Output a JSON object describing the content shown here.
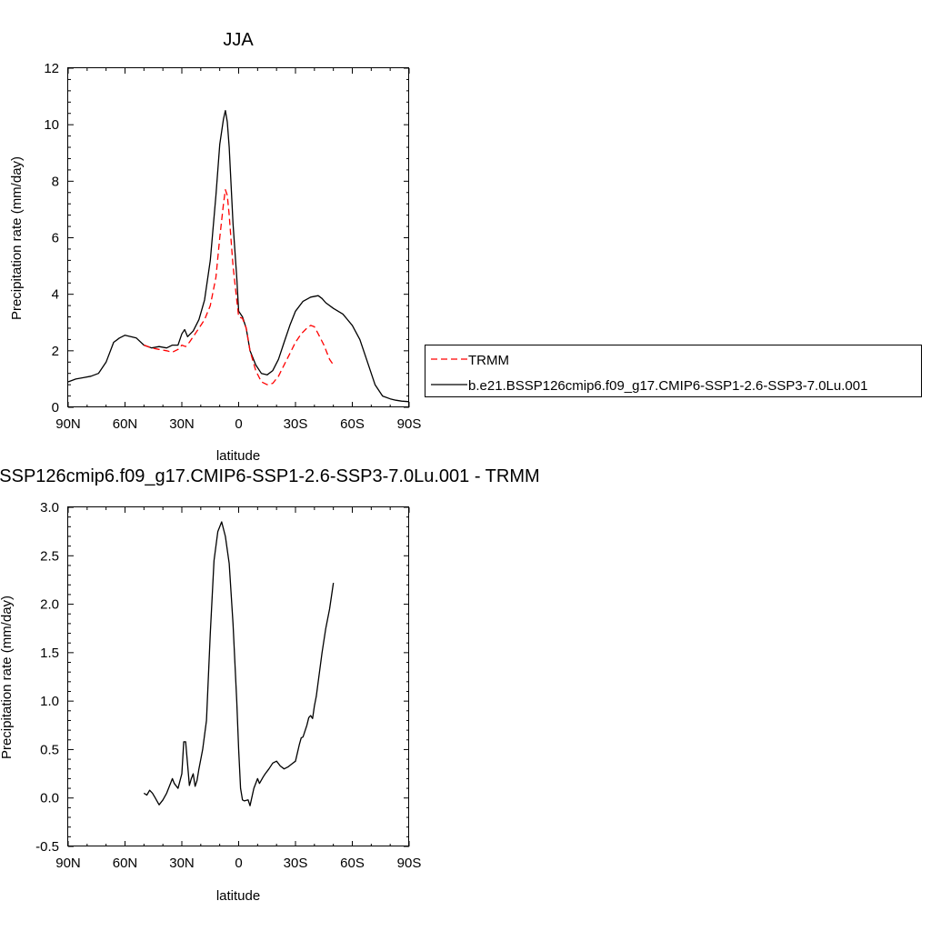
{
  "legend": {
    "entries": [
      {
        "label": "TRMM",
        "color": "#ff0000",
        "style": "dashed"
      },
      {
        "label": "b.e21.BSSP126cmip6.f09_g17.CMIP6-SSP1-2.6-SSP3-7.0Lu.001",
        "color": "#000000",
        "style": "solid"
      }
    ]
  },
  "chart_data": [
    {
      "type": "line",
      "title": "JJA",
      "xlabel": "latitude",
      "ylabel": "Precipitation rate (mm/day)",
      "xlim": [
        90,
        -90
      ],
      "ylim": [
        0,
        12
      ],
      "x_ticks": [
        90,
        60,
        30,
        0,
        -30,
        -60,
        -90
      ],
      "x_tick_labels": [
        "90N",
        "60N",
        "30N",
        "0",
        "30S",
        "60S",
        "90S"
      ],
      "y_ticks": [
        0,
        2,
        4,
        6,
        8,
        10,
        12
      ],
      "y_tick_labels": [
        "0",
        "2",
        "4",
        "6",
        "8",
        "10",
        "12"
      ],
      "series": [
        {
          "name": "b.e21.BSSP126cmip6.f09_g17.CMIP6-SSP1-2.6-SSP3-7.0Lu.001",
          "color": "#000000",
          "style": "solid",
          "x": [
            90,
            86,
            82,
            78,
            74,
            70,
            66,
            63,
            60,
            57,
            54,
            50,
            46,
            42,
            38,
            35,
            32,
            30,
            28.5,
            27,
            24,
            21,
            18,
            15,
            12,
            10,
            8,
            7,
            6,
            5,
            3,
            1,
            0,
            -2,
            -4,
            -6,
            -9,
            -12,
            -15,
            -18,
            -21,
            -24,
            -27,
            -30,
            -34,
            -38,
            -42,
            -44,
            -46,
            -50,
            -55,
            -60,
            -64,
            -68,
            -72,
            -76,
            -80,
            -83,
            -86,
            -90
          ],
          "y": [
            0.9,
            1.0,
            1.05,
            1.1,
            1.2,
            1.6,
            2.3,
            2.45,
            2.55,
            2.5,
            2.45,
            2.2,
            2.1,
            2.15,
            2.1,
            2.2,
            2.2,
            2.6,
            2.75,
            2.5,
            2.7,
            3.1,
            3.8,
            5.2,
            7.5,
            9.3,
            10.2,
            10.5,
            10.1,
            9.2,
            6.5,
            4.6,
            3.4,
            3.2,
            2.8,
            2.0,
            1.5,
            1.2,
            1.15,
            1.3,
            1.7,
            2.3,
            2.9,
            3.4,
            3.75,
            3.9,
            3.95,
            3.85,
            3.7,
            3.5,
            3.3,
            2.9,
            2.4,
            1.6,
            0.8,
            0.4,
            0.3,
            0.25,
            0.22,
            0.2
          ]
        },
        {
          "name": "TRMM",
          "color": "#ff0000",
          "style": "dashed",
          "x": [
            50,
            46,
            42,
            38,
            35,
            32,
            30,
            28,
            26,
            24,
            21,
            18,
            15,
            12,
            10,
            8,
            7,
            6,
            5,
            3,
            1,
            0,
            -2,
            -4,
            -6,
            -9,
            -12,
            -15,
            -18,
            -21,
            -24,
            -27,
            -30,
            -33,
            -36,
            -38,
            -40,
            -42,
            -45,
            -48,
            -50
          ],
          "y": [
            2.2,
            2.1,
            2.05,
            2.0,
            1.95,
            2.05,
            2.2,
            2.15,
            2.3,
            2.5,
            2.8,
            3.1,
            3.6,
            4.6,
            6.0,
            7.2,
            7.7,
            7.5,
            6.8,
            5.0,
            3.8,
            3.2,
            3.15,
            2.8,
            2.0,
            1.3,
            0.9,
            0.8,
            0.85,
            1.1,
            1.5,
            1.9,
            2.3,
            2.6,
            2.8,
            2.9,
            2.85,
            2.6,
            2.2,
            1.7,
            1.5
          ]
        }
      ]
    },
    {
      "type": "line",
      "title": "b.e21.BSSP126cmip6.f09_g17.CMIP6-SSP1-2.6-SSP3-7.0Lu.001 - TRMM",
      "xlabel": "latitude",
      "ylabel": "Precipitation rate (mm/day)",
      "xlim": [
        90,
        -90
      ],
      "ylim": [
        -0.5,
        3.0
      ],
      "x_ticks": [
        90,
        60,
        30,
        0,
        -30,
        -60,
        -90
      ],
      "x_tick_labels": [
        "90N",
        "60N",
        "30N",
        "0",
        "30S",
        "60S",
        "90S"
      ],
      "y_ticks": [
        -0.5,
        0.0,
        0.5,
        1.0,
        1.5,
        2.0,
        2.5,
        3.0
      ],
      "y_tick_labels": [
        "-0.5",
        "0.0",
        "0.5",
        "1.0",
        "1.5",
        "2.0",
        "2.5",
        "3.0"
      ],
      "series": [
        {
          "color": "#000000",
          "style": "solid",
          "x": [
            50,
            48.5,
            47,
            45.5,
            44,
            42,
            40,
            38,
            36,
            35,
            34,
            32,
            30,
            29,
            28,
            27,
            26,
            25,
            24,
            23,
            22,
            21,
            19,
            17,
            15,
            13,
            11,
            9,
            7,
            5,
            3,
            1,
            0,
            -1,
            -2,
            -3,
            -5,
            -6,
            -8,
            -10,
            -11,
            -13,
            -14,
            -16,
            -18,
            -20,
            -22,
            -24,
            -26,
            -28,
            -30,
            -32,
            -33,
            -34,
            -36,
            -37,
            -38,
            -39,
            -40,
            -41,
            -42,
            -44,
            -46,
            -48,
            -50
          ],
          "y": [
            0.05,
            0.03,
            0.08,
            0.05,
            0.0,
            -0.07,
            -0.02,
            0.05,
            0.15,
            0.2,
            0.15,
            0.1,
            0.25,
            0.58,
            0.58,
            0.35,
            0.13,
            0.2,
            0.25,
            0.12,
            0.18,
            0.3,
            0.5,
            0.8,
            1.7,
            2.45,
            2.75,
            2.85,
            2.7,
            2.42,
            1.8,
            1.0,
            0.5,
            0.1,
            -0.02,
            -0.03,
            -0.02,
            -0.08,
            0.1,
            0.2,
            0.15,
            0.22,
            0.25,
            0.3,
            0.36,
            0.38,
            0.33,
            0.3,
            0.32,
            0.35,
            0.38,
            0.55,
            0.62,
            0.63,
            0.75,
            0.83,
            0.85,
            0.82,
            0.95,
            1.05,
            1.2,
            1.5,
            1.75,
            1.95,
            2.22
          ]
        }
      ]
    }
  ]
}
